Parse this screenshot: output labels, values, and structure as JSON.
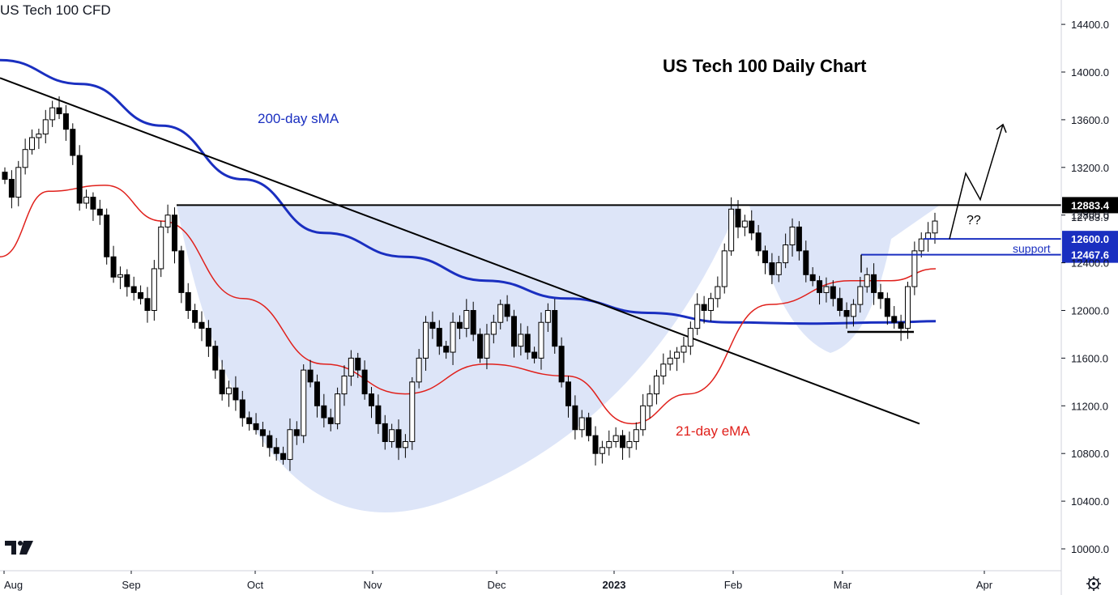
{
  "header": {
    "symbol_title": "US Tech 100 CFD"
  },
  "colors": {
    "candle_up": "#ffffff",
    "candle_down": "#000000",
    "sma200": "#1a2fc0",
    "ema21": "#e0201b",
    "shade": "#dbe4f8",
    "support": "#1a2fc0",
    "label_dark": "#131722",
    "label_blue": "#1a2fc0"
  },
  "chart_data": {
    "type": "candlestick",
    "title": "US Tech 100 Daily Chart",
    "ylim": [
      9900,
      14400
    ],
    "x_ticks": [
      "Aug",
      "Sep",
      "Oct",
      "Nov",
      "Dec",
      "2023",
      "Feb",
      "Mar",
      "Apr"
    ],
    "y_ticks": [
      10000,
      10400,
      10800,
      11200,
      11600,
      12000,
      12400,
      12800,
      13200,
      13600,
      14000,
      14400
    ],
    "levels": {
      "resistance": 12883.4,
      "last_price": 12783.9,
      "support_top": 12600.0,
      "support_bottom": 12467.6,
      "double_bottom": 11820
    },
    "price_labels": [
      "12883.4",
      "12783.9",
      "12600.0",
      "12467.6"
    ],
    "annotations": {
      "sma_label": "200-day sMA",
      "ema_label": "21-day eMA",
      "support_label": "support",
      "question_label": "??"
    },
    "projection_target": 13560,
    "close_series_key": [
      13100,
      12950,
      13200,
      13350,
      13450,
      13480,
      13600,
      13700,
      13650,
      13520,
      13300,
      12900,
      12950,
      12850,
      12800,
      12450,
      12280,
      12300,
      12200,
      12150,
      12100,
      12000,
      12350,
      12700,
      12800,
      12500,
      12150,
      12000,
      11900,
      11850,
      11700,
      11500,
      11300,
      11350,
      11250,
      11100,
      11050,
      11000,
      10950,
      10850,
      10800,
      10750,
      11000,
      10950,
      11500,
      11400,
      11200,
      11100,
      11050,
      11300,
      11450,
      11600,
      11500,
      11300,
      11200,
      11050,
      10900,
      11000,
      10850,
      10900,
      11400,
      11600,
      11900,
      11850,
      11700,
      11650,
      11900,
      11850,
      12000,
      11800,
      11600,
      11800,
      11900,
      12050,
      11950,
      11700,
      11800,
      11650,
      11600,
      11900,
      12000,
      11700,
      11400,
      11200,
      11000,
      11100,
      10950,
      10800,
      10850,
      10900,
      10950,
      10850,
      10900,
      11000,
      11200,
      11300,
      11450,
      11550,
      11600,
      11650,
      11700,
      11850,
      12050,
      12000,
      12100,
      12200,
      12500,
      12850,
      12700,
      12750,
      12650,
      12500,
      12400,
      12300,
      12400,
      12550,
      12700,
      12500,
      12300,
      12250,
      12150,
      12200,
      12100,
      12000,
      11950,
      12050,
      12200,
      12300,
      12150,
      12100,
      11950,
      11900,
      11850,
      12200,
      12500,
      12600,
      12650,
      12750
    ],
    "sma200_key": [
      [
        0,
        14100
      ],
      [
        100,
        13900
      ],
      [
        200,
        13550
      ],
      [
        300,
        13100
      ],
      [
        400,
        12650
      ],
      [
        500,
        12450
      ],
      [
        600,
        12250
      ],
      [
        700,
        12100
      ],
      [
        800,
        11980
      ],
      [
        900,
        11900
      ],
      [
        1000,
        11890
      ],
      [
        1100,
        11900
      ],
      [
        1155,
        11910
      ]
    ],
    "ema21_key": [
      [
        0,
        12450
      ],
      [
        60,
        13000
      ],
      [
        130,
        13050
      ],
      [
        200,
        12750
      ],
      [
        300,
        12100
      ],
      [
        400,
        11550
      ],
      [
        500,
        11300
      ],
      [
        600,
        11550
      ],
      [
        700,
        11450
      ],
      [
        780,
        11050
      ],
      [
        850,
        11300
      ],
      [
        950,
        12050
      ],
      [
        1050,
        12250
      ],
      [
        1100,
        12250
      ],
      [
        1155,
        12350
      ]
    ],
    "trendline": {
      "start": [
        0,
        13950
      ],
      "end": [
        1135,
        11050
      ]
    }
  }
}
